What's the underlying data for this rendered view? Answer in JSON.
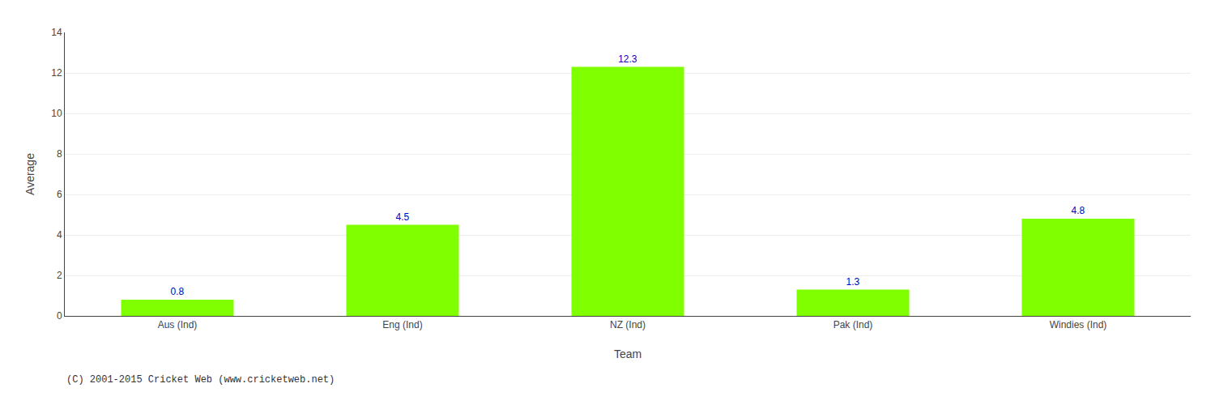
{
  "chart_data": {
    "type": "bar",
    "categories": [
      "Aus (Ind)",
      "Eng (Ind)",
      "NZ (Ind)",
      "Pak (Ind)",
      "Windies (Ind)"
    ],
    "values": [
      0.8,
      4.5,
      12.3,
      1.3,
      4.8
    ],
    "color": "#7fff00",
    "xlabel": "Team",
    "ylabel": "Average",
    "ylim": [
      0,
      14
    ],
    "yticks": [
      0,
      2,
      4,
      6,
      8,
      10,
      12,
      14
    ],
    "grid": true,
    "data_labels": true,
    "annotations": [
      "(C) 2001-2015 Cricket Web (www.cricketweb.net)"
    ]
  }
}
